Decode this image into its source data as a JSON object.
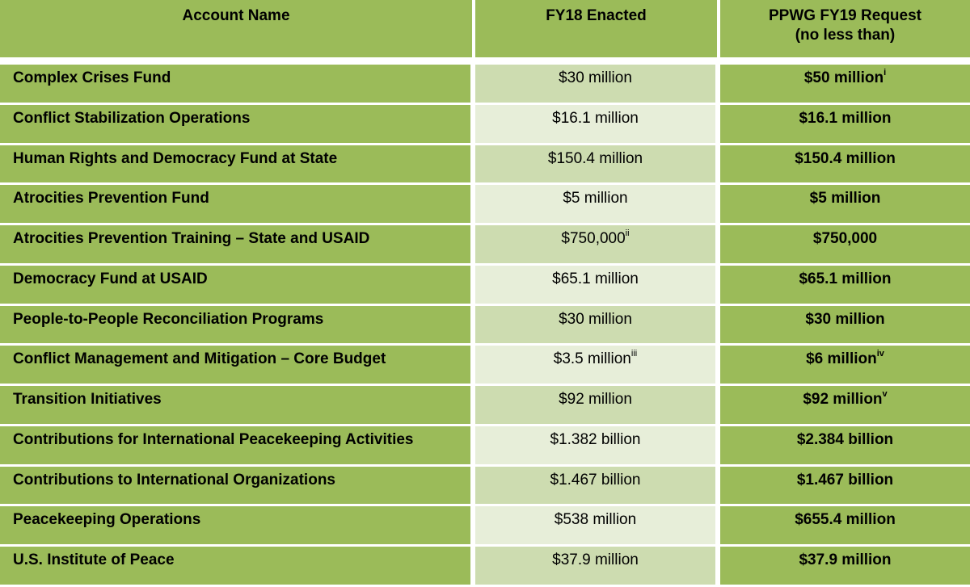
{
  "table": {
    "headers": {
      "account_name": "Account Name",
      "fy18": "FY18 Enacted",
      "fy19_line1": "PPWG FY19 Request",
      "fy19_line2": "(no less than)"
    },
    "rows": [
      {
        "name": "Complex Crises Fund",
        "fy18": "$30 million",
        "fy18_note": "",
        "fy19": "$50 million",
        "fy19_note": "i"
      },
      {
        "name": "Conflict Stabilization Operations",
        "fy18": "$16.1 million",
        "fy18_note": "",
        "fy19": "$16.1 million",
        "fy19_note": ""
      },
      {
        "name": "Human Rights and Democracy Fund at State",
        "fy18": "$150.4 million",
        "fy18_note": "",
        "fy19": "$150.4 million",
        "fy19_note": ""
      },
      {
        "name": "Atrocities Prevention Fund",
        "fy18": "$5 million",
        "fy18_note": "",
        "fy19": "$5 million",
        "fy19_note": ""
      },
      {
        "name": "Atrocities Prevention Training – State and USAID",
        "fy18": "$750,000",
        "fy18_note": "ii",
        "fy19": "$750,000",
        "fy19_note": ""
      },
      {
        "name": "Democracy Fund at USAID",
        "fy18": "$65.1 million",
        "fy18_note": "",
        "fy19": "$65.1 million",
        "fy19_note": ""
      },
      {
        "name": "People-to-People Reconciliation Programs",
        "fy18": "$30 million",
        "fy18_note": "",
        "fy19": "$30 million",
        "fy19_note": ""
      },
      {
        "name": "Conflict Management and Mitigation – Core Budget",
        "fy18": "$3.5 million",
        "fy18_note": "iii",
        "fy19": "$6 million",
        "fy19_note": "iv"
      },
      {
        "name": "Transition Initiatives",
        "fy18": "$92 million",
        "fy18_note": "",
        "fy19": "$92 million",
        "fy19_note": "v"
      },
      {
        "name": "Contributions for International Peacekeeping Activities",
        "fy18": "$1.382 billion",
        "fy18_note": "",
        "fy19": "$2.384 billion",
        "fy19_note": ""
      },
      {
        "name": "Contributions to International Organizations",
        "fy18": "$1.467 billion",
        "fy18_note": "",
        "fy19": "$1.467 billion",
        "fy19_note": ""
      },
      {
        "name": "Peacekeeping Operations",
        "fy18": "$538 million",
        "fy18_note": "",
        "fy19": "$655.4 million",
        "fy19_note": ""
      },
      {
        "name": "U.S. Institute of Peace",
        "fy18": "$37.9 million",
        "fy18_note": "",
        "fy19": "$37.9 million",
        "fy19_note": ""
      }
    ]
  }
}
